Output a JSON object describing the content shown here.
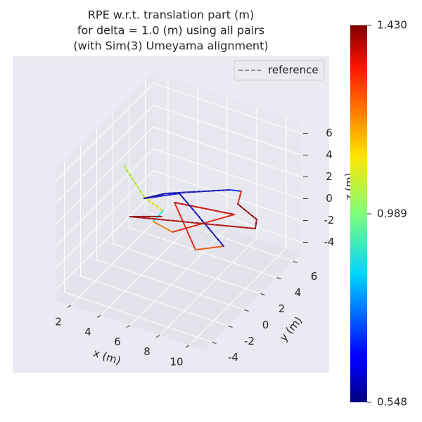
{
  "chart_data": {
    "type": "line3d",
    "title": [
      "RPE w.r.t. translation part (m)",
      "for delta = 1.0 (m) using all pairs",
      "(with Sim(3) Umeyama alignment)"
    ],
    "xlabel": "x (m)",
    "ylabel": "y (m)",
    "zlabel": "z (m)",
    "xlim": [
      1,
      11
    ],
    "ylim": [
      -5,
      7
    ],
    "zlim": [
      -5,
      7
    ],
    "xticks": [
      2,
      4,
      6,
      8,
      10
    ],
    "yticks": [
      -4,
      -2,
      0,
      2,
      4,
      6
    ],
    "zticks": [
      -4,
      -2,
      0,
      2,
      4,
      6
    ],
    "grid": true,
    "legend": {
      "entries": [
        "reference"
      ],
      "color": "#808080",
      "loc": "upper right"
    },
    "trajectory": {
      "x": [
        1.45,
        3.53,
        5.2,
        5.23,
        6.73,
        8.97,
        5.34,
        8.8,
        10.04,
        5.13,
        3.6,
        4.42,
        7.51,
        8.15,
        8.62,
        10.36,
        10.75,
        3.81,
        5.41
      ],
      "y": [
        2.53,
        1.25,
        0.55,
        -0.73,
        -1.11,
        2.44,
        1.69,
        -2.03,
        -0.81,
        2.68,
        1.12,
        2.23,
        4.59,
        4.82,
        3.52,
        2.69,
        1.8,
        -1.0,
        -0.01
      ],
      "z": [
        2,
        1,
        1,
        1,
        1,
        1,
        1,
        1,
        1,
        1,
        1,
        1,
        1,
        1,
        1,
        1,
        1,
        1,
        1
      ],
      "values": [
        1.05,
        1.1,
        0.9,
        1.2,
        1.3,
        1.35,
        1.3,
        1.25,
        0.6,
        0.65,
        0.56,
        0.6,
        0.7,
        1.3,
        1.42,
        1.42,
        1.38,
        1.4,
        1.3
      ]
    },
    "colorbar": {
      "colormap": "jet",
      "lim": [
        0.548,
        1.43
      ],
      "ticks": [
        0.548,
        0.989,
        {
          "value": 1.43,
          "label": "1.430"
        }
      ]
    }
  }
}
